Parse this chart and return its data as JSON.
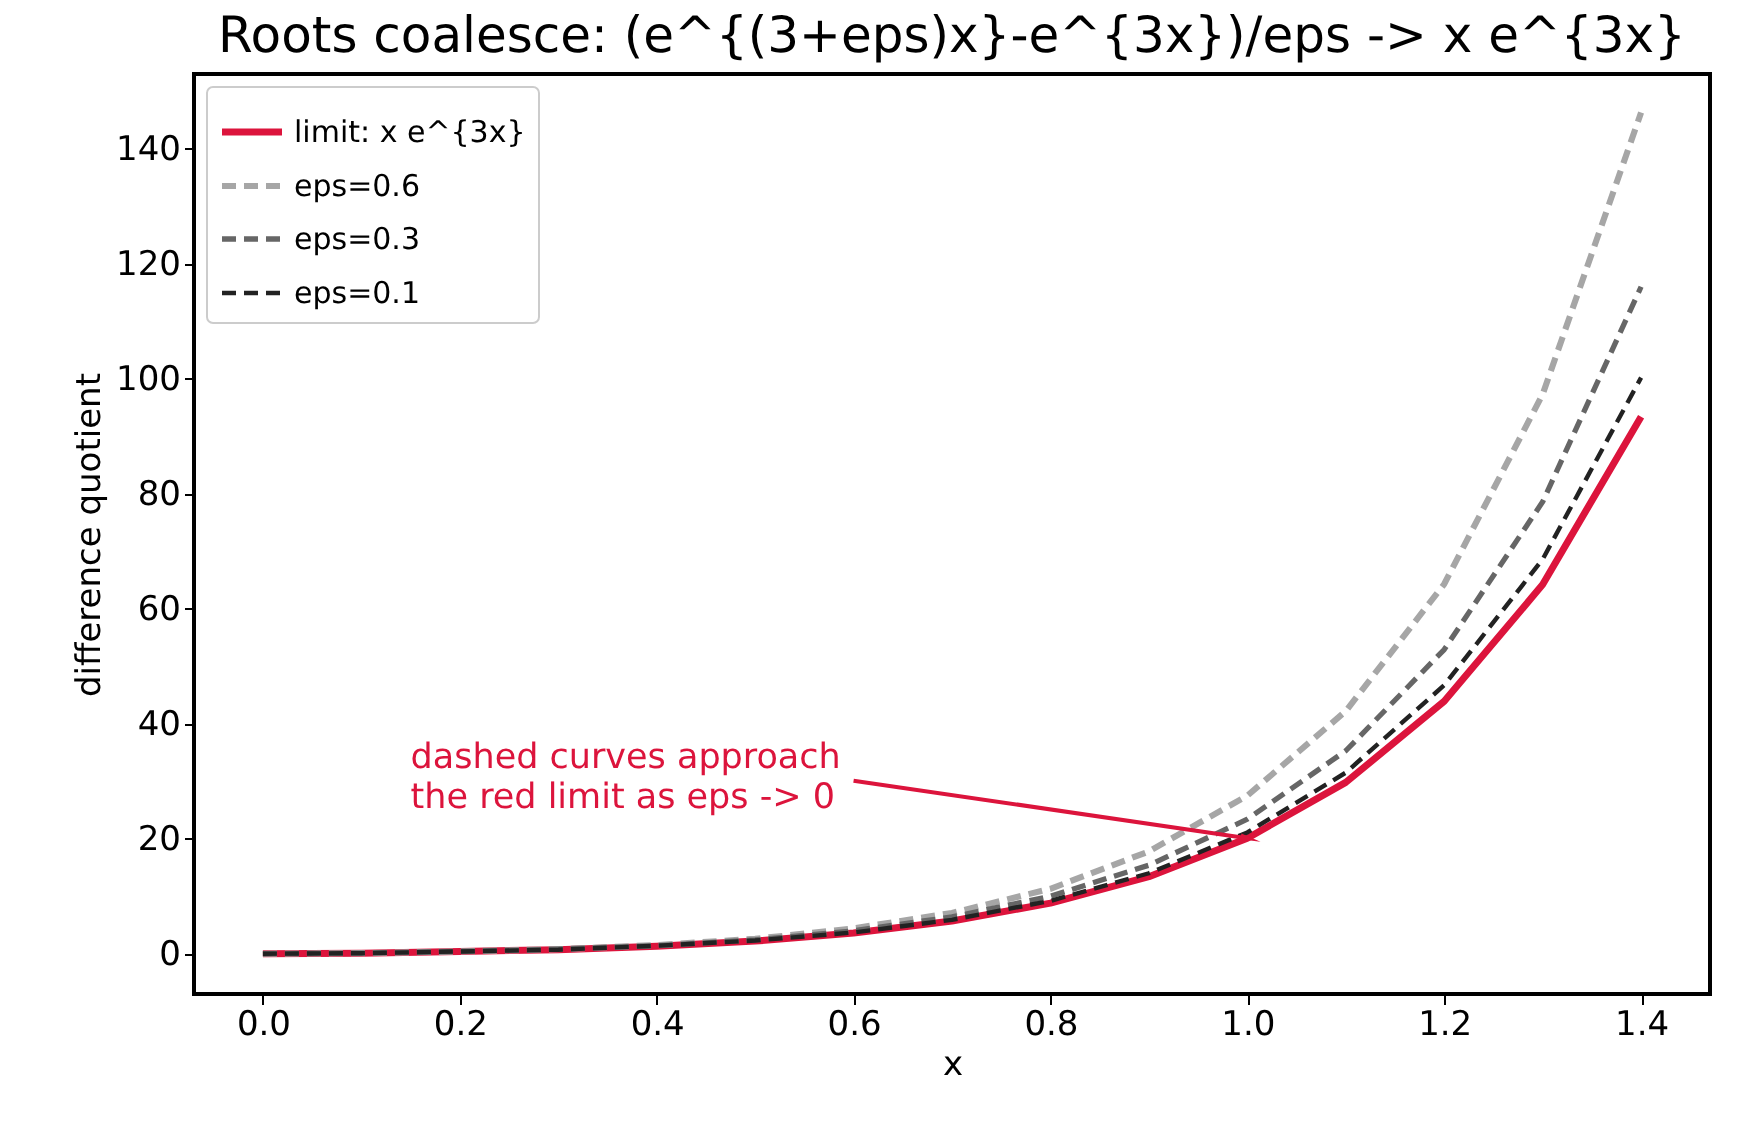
{
  "chart_data": {
    "type": "line",
    "title": "Roots coalesce: (e^{(3+eps)x}-e^{3x})/eps  ->  x e^{3x}",
    "xlabel": "x",
    "ylabel": "difference quotient",
    "x": [
      0,
      0.1,
      0.2,
      0.3,
      0.4,
      0.5,
      0.6,
      0.7,
      0.8,
      0.9,
      1.0,
      1.1,
      1.2,
      1.3,
      1.4
    ],
    "series": [
      {
        "name": "limit: x e^{3x}",
        "color": "#dc143c",
        "line_style": "solid",
        "values": [
          0,
          0.1,
          0.4,
          0.7,
          1.3,
          2.2,
          3.6,
          5.7,
          8.8,
          13.4,
          20.1,
          29.8,
          43.9,
          64.2,
          93.4
        ]
      },
      {
        "name": "eps=0.6",
        "color": "#a6a6a6",
        "line_style": "dashed",
        "values": [
          0,
          0.1,
          0.4,
          0.8,
          1.5,
          2.6,
          4.4,
          7.1,
          11.3,
          17.8,
          27.5,
          42.2,
          64.3,
          97.3,
          146.3
        ]
      },
      {
        "name": "eps=0.3",
        "color": "#666666",
        "line_style": "dashed",
        "values": [
          0,
          0.1,
          0.4,
          0.8,
          1.4,
          2.4,
          4.0,
          6.4,
          10.0,
          15.4,
          23.4,
          35.3,
          52.9,
          78.6,
          116.0
        ]
      },
      {
        "name": "eps=0.1",
        "color": "#222222",
        "line_style": "dashed",
        "values": [
          0,
          0.1,
          0.4,
          0.7,
          1.4,
          2.3,
          3.7,
          5.9,
          9.2,
          14.0,
          21.1,
          31.5,
          46.7,
          68.6,
          100.2
        ]
      }
    ],
    "annotations": [
      {
        "text": "dashed curves approach\nthe red limit as eps -> 0",
        "x": 1.0,
        "y": 20.1
      }
    ],
    "xlim": [
      -0.07,
      1.47
    ],
    "xticks": [
      {
        "value": 0,
        "label": "0.0"
      },
      0.2,
      0.4,
      0.6,
      0.8,
      {
        "value": 1,
        "label": "1.0"
      },
      1.2,
      1.4
    ],
    "ylim": [
      -7,
      153
    ],
    "yticks": [
      0,
      20,
      40,
      60,
      80,
      100,
      120,
      140
    ],
    "grid": false,
    "legend": "top left",
    "marker": "none"
  }
}
